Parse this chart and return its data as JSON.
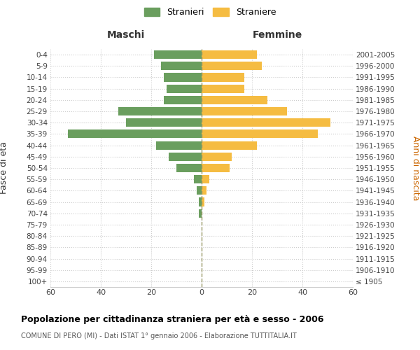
{
  "age_groups": [
    "100+",
    "95-99",
    "90-94",
    "85-89",
    "80-84",
    "75-79",
    "70-74",
    "65-69",
    "60-64",
    "55-59",
    "50-54",
    "45-49",
    "40-44",
    "35-39",
    "30-34",
    "25-29",
    "20-24",
    "15-19",
    "10-14",
    "5-9",
    "0-4"
  ],
  "birth_years": [
    "≤ 1905",
    "1906-1910",
    "1911-1915",
    "1916-1920",
    "1921-1925",
    "1926-1930",
    "1931-1935",
    "1936-1940",
    "1941-1945",
    "1946-1950",
    "1951-1955",
    "1956-1960",
    "1961-1965",
    "1966-1970",
    "1971-1975",
    "1976-1980",
    "1981-1985",
    "1986-1990",
    "1991-1995",
    "1996-2000",
    "2001-2005"
  ],
  "maschi": [
    0,
    0,
    0,
    0,
    0,
    0,
    1,
    1,
    2,
    3,
    10,
    13,
    18,
    53,
    30,
    33,
    15,
    14,
    15,
    16,
    19
  ],
  "femmine": [
    0,
    0,
    0,
    0,
    0,
    0,
    0,
    1,
    2,
    3,
    11,
    12,
    22,
    46,
    51,
    34,
    26,
    17,
    17,
    24,
    22
  ],
  "color_maschi": "#6a9e5e",
  "color_femmine": "#f5bc42",
  "background_color": "#ffffff",
  "grid_color": "#cccccc",
  "title": "Popolazione per cittadinanza straniera per età e sesso - 2006",
  "subtitle": "COMUNE DI PERO (MI) - Dati ISTAT 1° gennaio 2006 - Elaborazione TUTTITALIA.IT",
  "xlabel_left": "Maschi",
  "xlabel_right": "Femmine",
  "ylabel_left": "Fasce di età",
  "ylabel_right": "Anni di nascita",
  "legend_stranieri": "Stranieri",
  "legend_straniere": "Straniere",
  "xlim": 60,
  "bar_height": 0.75
}
